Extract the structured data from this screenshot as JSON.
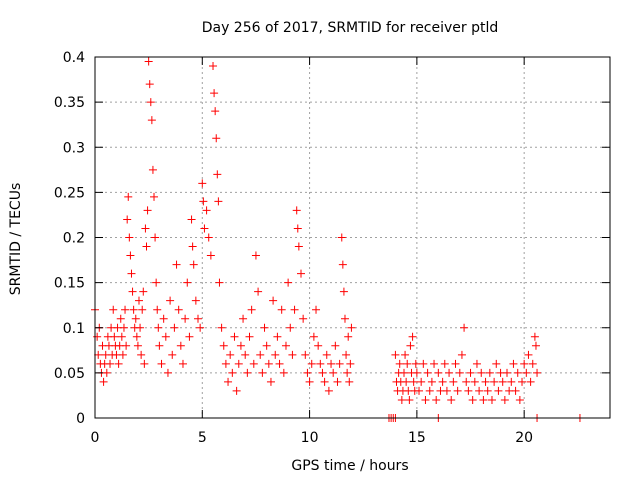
{
  "chart_data": {
    "type": "scatter",
    "title": "Day 256 of 2017, SRMTID for receiver ptld",
    "xlabel": "GPS time / hours",
    "ylabel": "SRMTID / TECUs",
    "xlim": [
      0,
      24
    ],
    "ylim": [
      0,
      0.4
    ],
    "xticks": [
      0,
      5,
      10,
      15,
      20
    ],
    "xtick_labels": [
      "0",
      "5",
      "10",
      "15",
      "20"
    ],
    "yticks": [
      0,
      0.05,
      0.1,
      0.15,
      0.2,
      0.25,
      0.3,
      0.35,
      0.4
    ],
    "ytick_labels": [
      "0",
      "0.05",
      "0.1",
      "0.15",
      "0.2",
      "0.25",
      "0.3",
      "0.35",
      "0.4"
    ],
    "grid": true,
    "marker": "+",
    "color": "#ff0000",
    "series": [
      {
        "points": [
          [
            0.0,
            0.12
          ],
          [
            0.1,
            0.09
          ],
          [
            0.15,
            0.07
          ],
          [
            0.2,
            0.1
          ],
          [
            0.25,
            0.06
          ],
          [
            0.3,
            0.05
          ],
          [
            0.35,
            0.08
          ],
          [
            0.4,
            0.04
          ],
          [
            0.45,
            0.06
          ],
          [
            0.5,
            0.07
          ],
          [
            0.55,
            0.05
          ],
          [
            0.6,
            0.09
          ],
          [
            0.65,
            0.08
          ],
          [
            0.7,
            0.06
          ],
          [
            0.75,
            0.1
          ],
          [
            0.8,
            0.07
          ],
          [
            0.85,
            0.12
          ],
          [
            0.9,
            0.09
          ],
          [
            0.95,
            0.08
          ],
          [
            1.0,
            0.07
          ],
          [
            1.05,
            0.1
          ],
          [
            1.1,
            0.06
          ],
          [
            1.15,
            0.08
          ],
          [
            1.2,
            0.11
          ],
          [
            1.25,
            0.09
          ],
          [
            1.3,
            0.07
          ],
          [
            1.35,
            0.1
          ],
          [
            1.4,
            0.12
          ],
          [
            1.45,
            0.08
          ],
          [
            1.5,
            0.22
          ],
          [
            1.55,
            0.245
          ],
          [
            1.6,
            0.2
          ],
          [
            1.65,
            0.18
          ],
          [
            1.7,
            0.16
          ],
          [
            1.75,
            0.14
          ],
          [
            1.8,
            0.12
          ],
          [
            1.85,
            0.1
          ],
          [
            1.9,
            0.11
          ],
          [
            1.95,
            0.09
          ],
          [
            2.0,
            0.08
          ],
          [
            2.05,
            0.13
          ],
          [
            2.1,
            0.1
          ],
          [
            2.15,
            0.07
          ],
          [
            2.2,
            0.12
          ],
          [
            2.25,
            0.14
          ],
          [
            2.3,
            0.06
          ],
          [
            2.35,
            0.21
          ],
          [
            2.4,
            0.19
          ],
          [
            2.45,
            0.23
          ],
          [
            2.5,
            0.395
          ],
          [
            2.55,
            0.37
          ],
          [
            2.6,
            0.35
          ],
          [
            2.65,
            0.33
          ],
          [
            2.7,
            0.275
          ],
          [
            2.75,
            0.245
          ],
          [
            2.8,
            0.2
          ],
          [
            2.85,
            0.15
          ],
          [
            2.9,
            0.12
          ],
          [
            2.95,
            0.1
          ],
          [
            3.0,
            0.08
          ],
          [
            3.1,
            0.06
          ],
          [
            3.2,
            0.11
          ],
          [
            3.3,
            0.09
          ],
          [
            3.4,
            0.05
          ],
          [
            3.5,
            0.13
          ],
          [
            3.6,
            0.07
          ],
          [
            3.7,
            0.1
          ],
          [
            3.8,
            0.17
          ],
          [
            3.9,
            0.12
          ],
          [
            4.0,
            0.08
          ],
          [
            4.1,
            0.06
          ],
          [
            4.2,
            0.11
          ],
          [
            4.3,
            0.15
          ],
          [
            4.4,
            0.09
          ],
          [
            4.5,
            0.22
          ],
          [
            4.55,
            0.19
          ],
          [
            4.6,
            0.17
          ],
          [
            4.7,
            0.13
          ],
          [
            4.8,
            0.11
          ],
          [
            4.9,
            0.1
          ],
          [
            5.0,
            0.26
          ],
          [
            5.05,
            0.24
          ],
          [
            5.1,
            0.21
          ],
          [
            5.2,
            0.23
          ],
          [
            5.3,
            0.2
          ],
          [
            5.4,
            0.18
          ],
          [
            5.5,
            0.39
          ],
          [
            5.55,
            0.36
          ],
          [
            5.6,
            0.34
          ],
          [
            5.65,
            0.31
          ],
          [
            5.7,
            0.27
          ],
          [
            5.75,
            0.24
          ],
          [
            5.8,
            0.15
          ],
          [
            5.9,
            0.1
          ],
          [
            6.0,
            0.08
          ],
          [
            6.1,
            0.06
          ],
          [
            6.2,
            0.04
          ],
          [
            6.3,
            0.07
          ],
          [
            6.4,
            0.05
          ],
          [
            6.5,
            0.09
          ],
          [
            6.6,
            0.03
          ],
          [
            6.7,
            0.06
          ],
          [
            6.8,
            0.08
          ],
          [
            6.9,
            0.11
          ],
          [
            7.0,
            0.07
          ],
          [
            7.1,
            0.05
          ],
          [
            7.2,
            0.09
          ],
          [
            7.3,
            0.12
          ],
          [
            7.4,
            0.06
          ],
          [
            7.5,
            0.18
          ],
          [
            7.6,
            0.14
          ],
          [
            7.7,
            0.07
          ],
          [
            7.8,
            0.05
          ],
          [
            7.9,
            0.1
          ],
          [
            8.0,
            0.08
          ],
          [
            8.1,
            0.06
          ],
          [
            8.2,
            0.04
          ],
          [
            8.3,
            0.13
          ],
          [
            8.4,
            0.07
          ],
          [
            8.5,
            0.09
          ],
          [
            8.6,
            0.06
          ],
          [
            8.7,
            0.12
          ],
          [
            8.8,
            0.05
          ],
          [
            8.9,
            0.08
          ],
          [
            9.0,
            0.15
          ],
          [
            9.1,
            0.1
          ],
          [
            9.2,
            0.07
          ],
          [
            9.3,
            0.12
          ],
          [
            9.4,
            0.23
          ],
          [
            9.45,
            0.21
          ],
          [
            9.5,
            0.19
          ],
          [
            9.6,
            0.16
          ],
          [
            9.7,
            0.11
          ],
          [
            9.8,
            0.07
          ],
          [
            9.9,
            0.05
          ],
          [
            10.0,
            0.04
          ],
          [
            10.1,
            0.06
          ],
          [
            10.2,
            0.09
          ],
          [
            10.3,
            0.12
          ],
          [
            10.4,
            0.08
          ],
          [
            10.5,
            0.06
          ],
          [
            10.6,
            0.05
          ],
          [
            10.7,
            0.04
          ],
          [
            10.8,
            0.07
          ],
          [
            10.9,
            0.03
          ],
          [
            11.0,
            0.06
          ],
          [
            11.1,
            0.05
          ],
          [
            11.2,
            0.08
          ],
          [
            11.3,
            0.04
          ],
          [
            11.4,
            0.06
          ],
          [
            11.5,
            0.2
          ],
          [
            11.55,
            0.17
          ],
          [
            11.6,
            0.14
          ],
          [
            11.65,
            0.11
          ],
          [
            11.7,
            0.07
          ],
          [
            11.75,
            0.05
          ],
          [
            11.8,
            0.09
          ],
          [
            11.85,
            0.04
          ],
          [
            11.9,
            0.06
          ],
          [
            11.95,
            0.1
          ],
          [
            13.7,
            0.0
          ],
          [
            13.8,
            0.0
          ],
          [
            13.9,
            0.0
          ],
          [
            14.0,
            0.0
          ],
          [
            14.0,
            0.07
          ],
          [
            14.05,
            0.04
          ],
          [
            14.1,
            0.03
          ],
          [
            14.15,
            0.05
          ],
          [
            14.2,
            0.06
          ],
          [
            14.25,
            0.04
          ],
          [
            14.3,
            0.02
          ],
          [
            14.35,
            0.03
          ],
          [
            14.4,
            0.05
          ],
          [
            14.45,
            0.07
          ],
          [
            14.5,
            0.04
          ],
          [
            14.55,
            0.06
          ],
          [
            14.6,
            0.03
          ],
          [
            14.65,
            0.02
          ],
          [
            14.7,
            0.08
          ],
          [
            14.75,
            0.05
          ],
          [
            14.8,
            0.09
          ],
          [
            14.85,
            0.04
          ],
          [
            14.9,
            0.03
          ],
          [
            14.95,
            0.06
          ],
          [
            15.0,
            0.05
          ],
          [
            15.1,
            0.03
          ],
          [
            15.2,
            0.04
          ],
          [
            15.3,
            0.06
          ],
          [
            15.4,
            0.02
          ],
          [
            15.5,
            0.05
          ],
          [
            15.6,
            0.03
          ],
          [
            15.7,
            0.04
          ],
          [
            15.8,
            0.06
          ],
          [
            15.9,
            0.02
          ],
          [
            16.0,
            0.0
          ],
          [
            16.0,
            0.05
          ],
          [
            16.1,
            0.03
          ],
          [
            16.2,
            0.04
          ],
          [
            16.3,
            0.06
          ],
          [
            16.4,
            0.03
          ],
          [
            16.5,
            0.05
          ],
          [
            16.6,
            0.02
          ],
          [
            16.7,
            0.04
          ],
          [
            16.8,
            0.06
          ],
          [
            16.9,
            0.03
          ],
          [
            17.0,
            0.05
          ],
          [
            17.1,
            0.07
          ],
          [
            17.2,
            0.1
          ],
          [
            17.3,
            0.04
          ],
          [
            17.4,
            0.03
          ],
          [
            17.5,
            0.05
          ],
          [
            17.6,
            0.02
          ],
          [
            17.7,
            0.04
          ],
          [
            17.8,
            0.06
          ],
          [
            17.9,
            0.03
          ],
          [
            18.0,
            0.05
          ],
          [
            18.1,
            0.02
          ],
          [
            18.2,
            0.04
          ],
          [
            18.3,
            0.03
          ],
          [
            18.4,
            0.05
          ],
          [
            18.5,
            0.02
          ],
          [
            18.6,
            0.04
          ],
          [
            18.7,
            0.06
          ],
          [
            18.8,
            0.03
          ],
          [
            18.9,
            0.05
          ],
          [
            19.0,
            0.04
          ],
          [
            19.1,
            0.02
          ],
          [
            19.2,
            0.05
          ],
          [
            19.3,
            0.03
          ],
          [
            19.4,
            0.04
          ],
          [
            19.5,
            0.06
          ],
          [
            19.6,
            0.03
          ],
          [
            19.7,
            0.05
          ],
          [
            19.8,
            0.02
          ],
          [
            19.9,
            0.04
          ],
          [
            20.0,
            0.06
          ],
          [
            20.1,
            0.05
          ],
          [
            20.2,
            0.07
          ],
          [
            20.3,
            0.04
          ],
          [
            20.4,
            0.06
          ],
          [
            20.5,
            0.09
          ],
          [
            20.55,
            0.08
          ],
          [
            20.6,
            0.05
          ],
          [
            20.6,
            0.0
          ],
          [
            22.6,
            0.0
          ]
        ]
      }
    ]
  }
}
